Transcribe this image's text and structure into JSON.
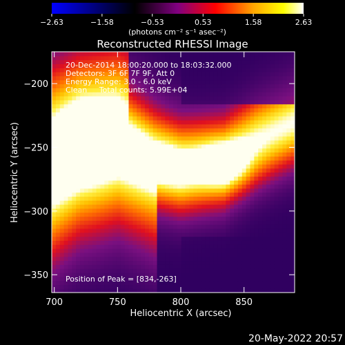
{
  "chart_data": {
    "type": "heatmap",
    "title": "Reconstructed RHESSI Image",
    "xlabel": "Heliocentric X (arcsec)",
    "ylabel": "Heliocentric Y (arcsec)",
    "xlim": [
      698,
      890
    ],
    "ylim": [
      -364,
      -175
    ],
    "x_ticks": [
      700,
      750,
      800,
      850
    ],
    "y_ticks": [
      -200,
      -250,
      -300,
      -350
    ],
    "x_tick_labels": [
      "700",
      "750",
      "800",
      "850"
    ],
    "y_tick_labels": [
      "−200",
      "−250",
      "−300",
      "−350"
    ],
    "colorbar": {
      "range": [
        -2.63,
        2.63
      ],
      "ticks": [
        -2.63,
        -1.58,
        -0.53,
        0.53,
        1.58,
        2.63
      ],
      "tick_labels": [
        "−2.63",
        "−1.58",
        "−0.53",
        "0.53",
        "1.58",
        "2.63"
      ],
      "unit_label": "(photons cm⁻² s⁻¹ asec⁻²)",
      "colors": [
        "#0000ff",
        "#000000",
        "#800080",
        "#ff0000",
        "#ffa500",
        "#ffff00",
        "#ffffff"
      ]
    },
    "annotations": [
      "20-Dec-2014 18:00:20.000 to 18:03:32.000",
      "Detectors: 3F 6F 7F 9F, Att 0",
      "Energy Range: 3.0 - 6.0 keV",
      "Clean     Total counts: 5.99E+04"
    ],
    "peak_label": "Position of Peak = [834,-263]",
    "peak": {
      "x": 834,
      "y": -263
    },
    "arc_ridge": [
      {
        "x": 698,
        "y": -275
      },
      {
        "x": 720,
        "y": -255
      },
      {
        "x": 750,
        "y": -245
      },
      {
        "x": 780,
        "y": -262
      },
      {
        "x": 800,
        "y": -268
      },
      {
        "x": 834,
        "y": -263
      },
      {
        "x": 860,
        "y": -245
      },
      {
        "x": 890,
        "y": -230
      }
    ]
  },
  "footer_date": "20-May-2022 20:57"
}
